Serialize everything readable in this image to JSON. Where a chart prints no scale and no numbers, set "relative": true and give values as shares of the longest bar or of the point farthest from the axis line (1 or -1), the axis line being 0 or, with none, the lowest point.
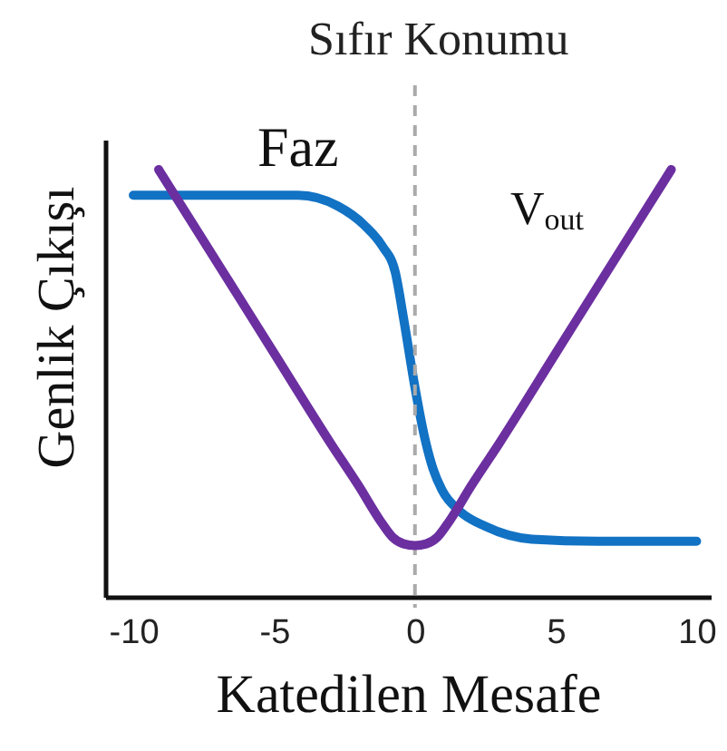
{
  "chart_data": {
    "type": "line",
    "xlabel": "Katedilen Mesafe",
    "ylabel": "Genlik Çıkışı",
    "relative": true,
    "tick_labels": "x",
    "line_style": "solid",
    "xlim": [
      -11,
      10.5
    ],
    "xticks": [
      -10,
      -5,
      0,
      5,
      10
    ],
    "ref_lines": [
      {
        "axis": "x",
        "value": 0,
        "label": "Sıfır Konumu",
        "color": "#aaaaaa",
        "line_style": "dashed"
      }
    ],
    "series": [
      {
        "name": "Faz",
        "color": "#1272c4",
        "x": [
          -10.0,
          -8.2,
          -6.3,
          -4.15,
          -2.75,
          -1.8,
          -1.15,
          -0.7,
          -0.4,
          0,
          0.32,
          0.64,
          0.96,
          1.6,
          2.5,
          4.15,
          6.5,
          10.0
        ],
        "values": [
          0.94,
          0.94,
          0.94,
          0.94,
          0.915,
          0.87,
          0.82,
          0.76,
          0.65,
          0.49,
          0.38,
          0.3,
          0.25,
          0.2,
          0.165,
          0.135,
          0.13,
          0.13
        ]
      },
      {
        "name": "V$_{out}$",
        "color": "#6b2fa0",
        "x": [
          -9.1,
          -7,
          -5,
          -3,
          -2,
          -1.2,
          -0.8,
          -0.4,
          0,
          0.4,
          0.8,
          1.2,
          2,
          3,
          5,
          7,
          9.1
        ],
        "values": [
          1.0,
          0.78,
          0.57,
          0.36,
          0.26,
          0.175,
          0.14,
          0.124,
          0.12,
          0.124,
          0.14,
          0.175,
          0.26,
          0.36,
          0.57,
          0.78,
          1.0
        ]
      }
    ]
  }
}
